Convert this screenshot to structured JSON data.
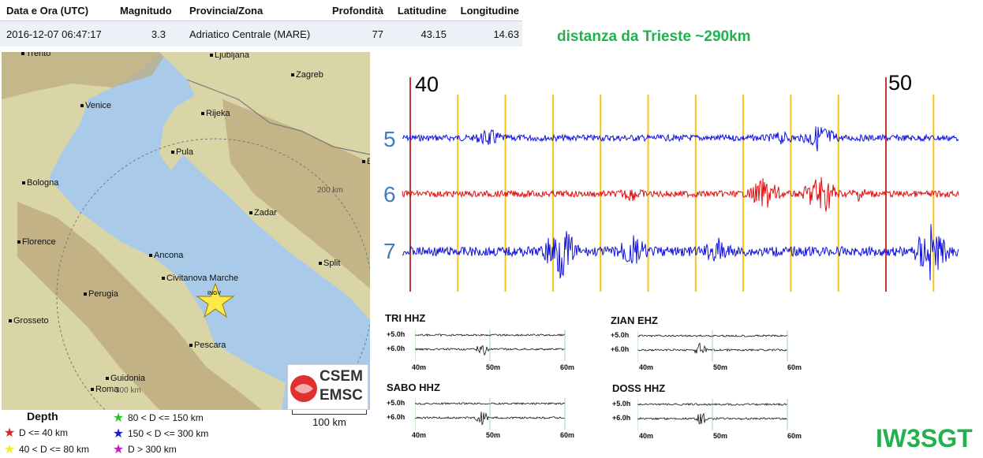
{
  "event_table": {
    "headers": [
      "Data e Ora (UTC)",
      "Magnitudo",
      "Provincia/Zona",
      "Profondità",
      "Latitudine",
      "Longitudine"
    ],
    "row": [
      "2016-12-07 06:47:17",
      "3.3",
      "Adriatico Centrale (MARE)",
      "77",
      "43.15",
      "14.63"
    ]
  },
  "distance_label": "distanza da Trieste ~290km",
  "map": {
    "cities": [
      "Trento",
      "Ljubljana",
      "Zagreb",
      "Venice",
      "Rijeka",
      "Pula",
      "Bologna",
      "Zadar",
      "Florence",
      "Ancona",
      "Split",
      "Civitanova Marche",
      "Perugia",
      "Grosseto",
      "Pescara",
      "Guidonia",
      "Roma",
      "B"
    ],
    "range_labels": [
      "200 km",
      "300 km"
    ],
    "epicenter_label": "INGV",
    "scale_label": "100 km",
    "logo_text": [
      "CSEM",
      "EMSC"
    ],
    "colors": {
      "sea": "#a9cbe9",
      "land": "#d8d4a4",
      "mountain": "#b9a67a",
      "epicenter": "#ffe84a"
    }
  },
  "legend": {
    "title": "Depth",
    "items": [
      {
        "label": "D <= 40 km",
        "color": "#e02020"
      },
      {
        "label": "40 < D <= 80 km",
        "color": "#f2ec2c"
      },
      {
        "label": "80 < D <= 150 km",
        "color": "#2bc42b"
      },
      {
        "label": "150 < D <= 300 km",
        "color": "#1e1ec8"
      },
      {
        "label": "D > 300 km",
        "color": "#c020c8"
      }
    ]
  },
  "seismogram": {
    "minute_labels": [
      "40",
      "50"
    ],
    "trace_labels": [
      "5",
      "6",
      "7"
    ],
    "trace_colors": [
      "#1010e0",
      "#e01010",
      "#1010e0"
    ]
  },
  "mini_plots": [
    {
      "title": "TRI HHZ",
      "rows": [
        "+5.0h",
        "+6.0h"
      ],
      "ticks": [
        "40m",
        "50m",
        "60m"
      ]
    },
    {
      "title": "ZIAN EHZ",
      "rows": [
        "+5.0h",
        "+6.0h"
      ],
      "ticks": [
        "40m",
        "50m",
        "60m"
      ]
    },
    {
      "title": "SABO HHZ",
      "rows": [
        "+5.0h",
        "+6.0h"
      ],
      "ticks": [
        "40m",
        "50m",
        "60m"
      ]
    },
    {
      "title": "DOSS HHZ",
      "rows": [
        "+5.0h",
        "+6.0h"
      ],
      "ticks": [
        "40m",
        "50m",
        "60m"
      ]
    }
  ],
  "callsign": "IW3SGT"
}
